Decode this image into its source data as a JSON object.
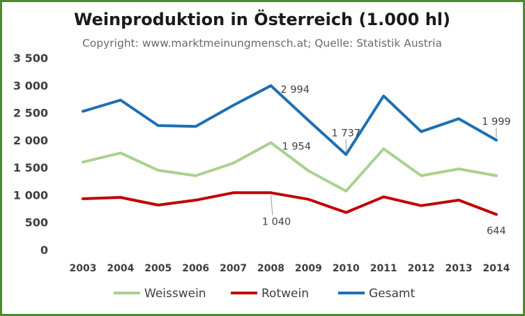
{
  "chart_data": {
    "type": "line",
    "title": "Weinproduktion in Österreich (1.000 hl)",
    "subtitle": "Copyright: www.marktmeinungmensch.at; Quelle: Statistik Austria",
    "categories": [
      "2003",
      "2004",
      "2005",
      "2006",
      "2007",
      "2008",
      "2009",
      "2010",
      "2011",
      "2012",
      "2013",
      "2014"
    ],
    "ylim": [
      0,
      3500
    ],
    "yticks": [
      {
        "value": 3500,
        "label": "3 500"
      },
      {
        "value": 3000,
        "label": "3 000"
      },
      {
        "value": 2500,
        "label": "2 500"
      },
      {
        "value": 2000,
        "label": "2 000"
      },
      {
        "value": 1500,
        "label": "1 500"
      },
      {
        "value": 1000,
        "label": "1 000"
      },
      {
        "value": 500,
        "label": "500"
      },
      {
        "value": 0,
        "label": "0"
      }
    ],
    "grid": false,
    "legend_position": "bottom",
    "series": [
      {
        "name": "Weisswein",
        "color": "#a9d18e",
        "values": [
          1600,
          1765,
          1450,
          1350,
          1580,
          1954,
          1440,
          1070,
          1840,
          1350,
          1475,
          1350
        ]
      },
      {
        "name": "Rotwein",
        "color": "#c00000",
        "values": [
          930,
          955,
          815,
          905,
          1040,
          1040,
          920,
          680,
          965,
          805,
          905,
          644
        ]
      },
      {
        "name": "Gesamt",
        "color": "#1f6fb2",
        "values": [
          2525,
          2730,
          2265,
          2250,
          2635,
          2994,
          2360,
          1737,
          2805,
          2155,
          2390,
          1999
        ]
      }
    ],
    "annotations": [
      {
        "series": "Gesamt",
        "category": "2008",
        "text": "2 994"
      },
      {
        "series": "Gesamt",
        "category": "2010",
        "text": "1 737"
      },
      {
        "series": "Gesamt",
        "category": "2014",
        "text": "1 999"
      },
      {
        "series": "Weisswein",
        "category": "2008",
        "text": "1 954"
      },
      {
        "series": "Rotwein",
        "category": "2008",
        "text": "1 040"
      },
      {
        "series": "Rotwein",
        "category": "2014",
        "text": "644"
      }
    ]
  }
}
